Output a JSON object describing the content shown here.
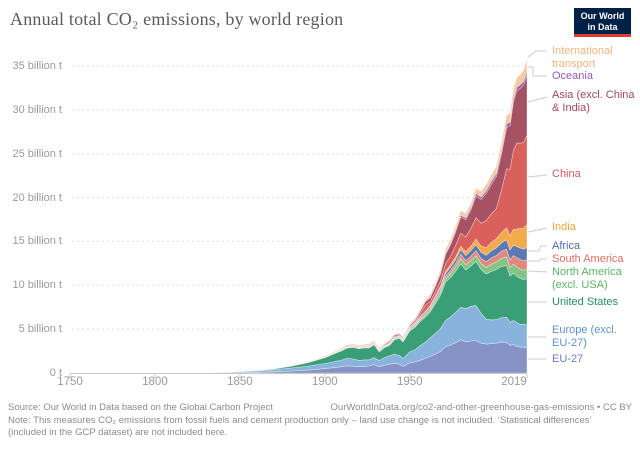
{
  "header": {
    "title": "Annual total CO₂ emissions, by world region",
    "logo_text": "Our World\nin Data"
  },
  "colors": {
    "logo_bg": "#002147",
    "logo_accent": "#dc3e32",
    "grid": "#dcdcdc",
    "axis_line": "#c8c8c8",
    "axis_text": "#9a9a9a",
    "title_text": "#5a5a5a",
    "footer_text": "#8b8b8b",
    "connector": "#cccccc"
  },
  "chart_data": {
    "type": "area",
    "stacked": true,
    "title": "Annual total CO₂ emissions, by world region",
    "unit": "billion tonnes of CO₂",
    "xlim": [
      1750,
      2019
    ],
    "ylim": [
      0,
      35
    ],
    "grid": true,
    "legend_position": "right",
    "x": [
      1750,
      1775,
      1800,
      1810,
      1820,
      1830,
      1840,
      1850,
      1860,
      1870,
      1880,
      1890,
      1900,
      1905,
      1910,
      1913,
      1917,
      1920,
      1923,
      1926,
      1929,
      1932,
      1935,
      1938,
      1941,
      1944,
      1946,
      1950,
      1953,
      1956,
      1959,
      1962,
      1965,
      1968,
      1971,
      1974,
      1977,
      1980,
      1983,
      1986,
      1989,
      1992,
      1995,
      1998,
      2001,
      2004,
      2007,
      2009,
      2011,
      2013,
      2015,
      2017,
      2019
    ],
    "y_ticks": [
      {
        "v": 35,
        "label": "35 billion t"
      },
      {
        "v": 30,
        "label": "30 billion t"
      },
      {
        "v": 25,
        "label": "25 billion t"
      },
      {
        "v": 20,
        "label": "20 billion t"
      },
      {
        "v": 15,
        "label": "15 billion t"
      },
      {
        "v": 10,
        "label": "10 billion t"
      },
      {
        "v": 5,
        "label": "5 billion t"
      },
      {
        "v": 0,
        "label": "0 t"
      }
    ],
    "x_ticks": [
      {
        "v": 1750,
        "label": "1750"
      },
      {
        "v": 1800,
        "label": "1800"
      },
      {
        "v": 1850,
        "label": "1850"
      },
      {
        "v": 1900,
        "label": "1900"
      },
      {
        "v": 1950,
        "label": "1950"
      },
      {
        "v": 2019,
        "label": "2019"
      }
    ],
    "series": [
      {
        "id": "eu-27",
        "label": "EU-27",
        "legend_label": "EU-27",
        "fill": "#8792c7",
        "text_color": "#6b7fc0",
        "values": [
          0.002,
          0.004,
          0.008,
          0.01,
          0.013,
          0.018,
          0.028,
          0.048,
          0.085,
          0.14,
          0.23,
          0.33,
          0.5,
          0.6,
          0.72,
          0.82,
          0.78,
          0.72,
          0.75,
          0.8,
          0.95,
          0.72,
          0.88,
          1.0,
          1.1,
          1.0,
          0.75,
          1.15,
          1.25,
          1.45,
          1.65,
          1.9,
          2.15,
          2.45,
          3.0,
          3.2,
          3.45,
          3.8,
          3.55,
          3.65,
          3.7,
          3.4,
          3.3,
          3.35,
          3.4,
          3.55,
          3.5,
          3.15,
          3.25,
          3.05,
          2.95,
          2.95,
          2.9
        ]
      },
      {
        "id": "europe-excl-eu-27",
        "label": "Europe (excl. EU-27)",
        "legend_label": "Europe (excl.\nEU-27)",
        "fill": "#88b3dd",
        "text_color": "#5e93d0",
        "values": [
          0.005,
          0.01,
          0.02,
          0.026,
          0.034,
          0.048,
          0.07,
          0.105,
          0.16,
          0.24,
          0.34,
          0.45,
          0.58,
          0.66,
          0.76,
          0.86,
          0.8,
          0.72,
          0.74,
          0.7,
          0.82,
          0.7,
          0.85,
          0.95,
          1.05,
          1.0,
          0.9,
          1.25,
          1.4,
          1.65,
          1.85,
          2.1,
          2.35,
          2.6,
          3.0,
          3.2,
          3.45,
          3.7,
          3.8,
          3.95,
          4.0,
          3.4,
          2.85,
          2.7,
          2.7,
          2.75,
          2.85,
          2.65,
          2.75,
          2.7,
          2.6,
          2.6,
          2.6
        ]
      },
      {
        "id": "united-states",
        "label": "United States",
        "legend_label": "United States",
        "fill": "#3a9f77",
        "text_color": "#22915f",
        "values": [
          0,
          0,
          0.0003,
          0.001,
          0.002,
          0.004,
          0.008,
          0.02,
          0.05,
          0.1,
          0.21,
          0.4,
          0.66,
          0.9,
          1.06,
          1.16,
          1.35,
          1.32,
          1.38,
          1.36,
          1.46,
          1.0,
          1.15,
          1.2,
          1.65,
          1.95,
          1.9,
          2.4,
          2.55,
          2.75,
          2.85,
          2.95,
          3.4,
          3.8,
          4.35,
          4.5,
          4.7,
          4.95,
          4.4,
          4.6,
          5.05,
          5.0,
          5.15,
          5.55,
          5.7,
          5.85,
          5.9,
          5.25,
          5.4,
          5.3,
          5.25,
          5.1,
          5.26
        ]
      },
      {
        "id": "north-america-excl-usa",
        "label": "North America (excl. USA)",
        "legend_label": "North America\n(excl. USA)",
        "fill": "#83c487",
        "text_color": "#57b561",
        "values": [
          0,
          0,
          0,
          0,
          0,
          0,
          0.0005,
          0.001,
          0.002,
          0.004,
          0.008,
          0.013,
          0.022,
          0.03,
          0.04,
          0.046,
          0.052,
          0.052,
          0.054,
          0.057,
          0.062,
          0.052,
          0.057,
          0.062,
          0.077,
          0.092,
          0.1,
          0.14,
          0.16,
          0.19,
          0.21,
          0.23,
          0.27,
          0.32,
          0.38,
          0.44,
          0.48,
          0.6,
          0.58,
          0.6,
          0.65,
          0.68,
          0.73,
          0.8,
          0.85,
          0.92,
          0.98,
          0.95,
          1.0,
          1.03,
          1.05,
          1.06,
          1.08
        ]
      },
      {
        "id": "south-america",
        "label": "South America",
        "legend_label": "South America",
        "fill": "#e2897e",
        "text_color": "#df6f63",
        "values": [
          0,
          0,
          0,
          0,
          0,
          0,
          0,
          0.0005,
          0.001,
          0.002,
          0.004,
          0.006,
          0.009,
          0.013,
          0.019,
          0.023,
          0.025,
          0.029,
          0.033,
          0.039,
          0.046,
          0.041,
          0.051,
          0.056,
          0.061,
          0.066,
          0.076,
          0.1,
          0.12,
          0.14,
          0.16,
          0.19,
          0.22,
          0.26,
          0.31,
          0.37,
          0.42,
          0.5,
          0.49,
          0.52,
          0.56,
          0.58,
          0.65,
          0.72,
          0.75,
          0.8,
          0.9,
          0.92,
          1.0,
          1.08,
          1.1,
          1.08,
          1.09
        ]
      },
      {
        "id": "africa",
        "label": "Africa",
        "legend_label": "Africa",
        "fill": "#5b79b0",
        "text_color": "#4c6cb0",
        "values": [
          0,
          0,
          0,
          0,
          0,
          0,
          0,
          0.0005,
          0.001,
          0.002,
          0.004,
          0.005,
          0.009,
          0.013,
          0.019,
          0.023,
          0.026,
          0.029,
          0.033,
          0.037,
          0.043,
          0.041,
          0.051,
          0.061,
          0.071,
          0.081,
          0.091,
          0.11,
          0.13,
          0.15,
          0.17,
          0.19,
          0.23,
          0.27,
          0.32,
          0.37,
          0.43,
          0.52,
          0.58,
          0.63,
          0.68,
          0.7,
          0.75,
          0.8,
          0.87,
          0.97,
          1.05,
          1.1,
          1.18,
          1.25,
          1.3,
          1.35,
          1.4
        ]
      },
      {
        "id": "india",
        "label": "India",
        "legend_label": "India",
        "fill": "#f2ab4b",
        "text_color": "#efa43b",
        "values": [
          0,
          0,
          0,
          0,
          0,
          0,
          0,
          0.0003,
          0.001,
          0.002,
          0.004,
          0.007,
          0.01,
          0.013,
          0.017,
          0.02,
          0.023,
          0.025,
          0.027,
          0.03,
          0.034,
          0.035,
          0.04,
          0.045,
          0.055,
          0.06,
          0.06,
          0.066,
          0.075,
          0.09,
          0.11,
          0.14,
          0.17,
          0.19,
          0.22,
          0.26,
          0.31,
          0.37,
          0.44,
          0.52,
          0.62,
          0.72,
          0.86,
          0.96,
          1.05,
          1.15,
          1.4,
          1.6,
          1.8,
          2.0,
          2.25,
          2.4,
          2.61
        ]
      },
      {
        "id": "china",
        "label": "China",
        "legend_label": "China",
        "fill": "#d9605b",
        "text_color": "#d65959",
        "values": [
          0,
          0,
          0,
          0,
          0,
          0,
          0,
          0,
          0,
          0,
          0,
          0.001,
          0.005,
          0.01,
          0.015,
          0.02,
          0.025,
          0.025,
          0.03,
          0.03,
          0.035,
          0.04,
          0.05,
          0.08,
          0.09,
          0.07,
          0.05,
          0.08,
          0.13,
          0.3,
          0.72,
          0.45,
          0.5,
          0.6,
          0.88,
          1.0,
          1.3,
          1.5,
          1.7,
          2.0,
          2.45,
          2.6,
          3.1,
          3.25,
          3.45,
          4.9,
          6.7,
          7.6,
          9.0,
          9.8,
          9.7,
          9.75,
          10.15
        ]
      },
      {
        "id": "asia-excl-china-india",
        "label": "Asia (excl. China & India)",
        "legend_label": "Asia (excl. China\n& India)",
        "fill": "#a65262",
        "text_color": "#a1485a",
        "values": [
          0,
          0,
          0,
          0,
          0,
          0,
          0,
          0.0005,
          0.001,
          0.002,
          0.004,
          0.007,
          0.016,
          0.026,
          0.036,
          0.046,
          0.056,
          0.062,
          0.066,
          0.076,
          0.086,
          0.086,
          0.11,
          0.14,
          0.16,
          0.14,
          0.1,
          0.15,
          0.19,
          0.27,
          0.36,
          0.45,
          0.58,
          0.78,
          1.05,
          1.3,
          1.55,
          1.85,
          1.95,
          2.15,
          2.5,
          2.7,
          3.1,
          3.35,
          3.65,
          4.1,
          4.7,
          5.0,
          5.5,
          5.95,
          6.25,
          6.55,
          6.9
        ]
      },
      {
        "id": "oceania",
        "label": "Oceania",
        "legend_label": "Oceania",
        "fill": "#9465ae",
        "text_color": "#9b5bb5",
        "values": [
          0,
          0,
          0,
          0,
          0,
          0.0005,
          0.001,
          0.002,
          0.003,
          0.006,
          0.01,
          0.014,
          0.018,
          0.021,
          0.024,
          0.027,
          0.028,
          0.028,
          0.029,
          0.031,
          0.033,
          0.031,
          0.035,
          0.04,
          0.046,
          0.051,
          0.051,
          0.061,
          0.066,
          0.076,
          0.086,
          0.091,
          0.11,
          0.13,
          0.15,
          0.17,
          0.19,
          0.21,
          0.22,
          0.24,
          0.28,
          0.29,
          0.31,
          0.35,
          0.37,
          0.39,
          0.41,
          0.42,
          0.42,
          0.41,
          0.43,
          0.44,
          0.45
        ]
      },
      {
        "id": "international-transport",
        "label": "International transport",
        "legend_label": "International\ntransport",
        "fill": "#f6cba2",
        "text_color": "#f3b480",
        "values": [
          0,
          0,
          0,
          0,
          0,
          0,
          0,
          0.003,
          0.007,
          0.012,
          0.025,
          0.05,
          0.09,
          0.11,
          0.14,
          0.17,
          0.14,
          0.125,
          0.135,
          0.145,
          0.155,
          0.125,
          0.135,
          0.135,
          0.105,
          0.085,
          0.105,
          0.145,
          0.165,
          0.195,
          0.215,
          0.255,
          0.305,
          0.365,
          0.435,
          0.455,
          0.485,
          0.51,
          0.485,
          0.535,
          0.605,
          0.635,
          0.685,
          0.765,
          0.805,
          0.905,
          1.025,
          0.975,
          1.055,
          1.105,
          1.155,
          1.255,
          1.325
        ]
      }
    ]
  },
  "footer": {
    "source": "Source: Our World in Data based on the Global Carbon Project",
    "link": "OurWorldInData.org/co2-and-other-greenhouse-gas-emissions • CC BY",
    "note": "Note: This measures CO₂ emissions from fossil fuels and cement production only – land use change is not included. ‘Statistical differences’ (included in the GCP dataset) are not included here."
  }
}
